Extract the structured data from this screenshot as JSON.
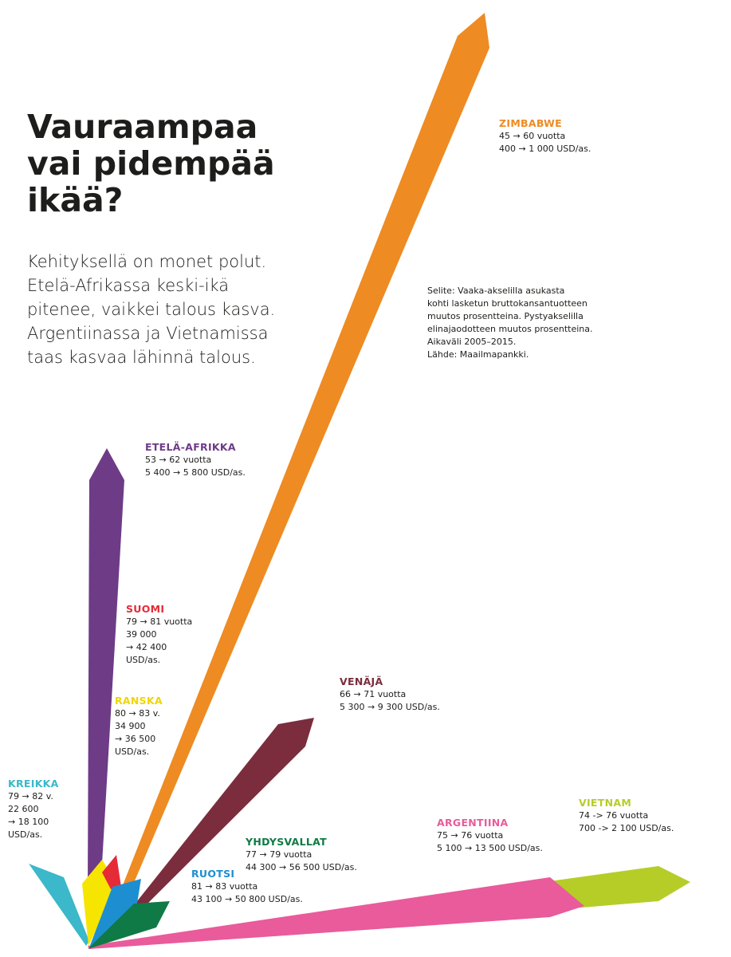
{
  "title": "Vauraampaa\nvai pidempää\nikää?",
  "intro": "Kehityksellä on monet polut.\nEtelä-Afrikassa keski-ikä\npitenee, vaikkei talous kasva.\nArgentiinassa ja Vietnamissa\ntaas kasvaa lähinnä talous.",
  "legend": "Selite: Vaaka-akselilla asukasta\nkohti lasketun bruttokansantuotteen\nmuutos prosentteina. Pystyakselilla\nelinajaodotteen muutos prosentteina.\nAikaväli 2005–2015.\nLähde: Maailmapankki.",
  "chart_data": {
    "type": "arrow-fan",
    "xlabel": "",
    "ylabel": "",
    "period": "2005–2015",
    "series": [
      {
        "name": "ZIMBABWE",
        "color": "#ee8b23",
        "lines": [
          "45 → 60 vuotta",
          "400 → 1 000 USD/as."
        ],
        "life_expectancy": [
          45,
          60
        ],
        "gdp_per_capita": [
          400,
          1000
        ]
      },
      {
        "name": "ETELÄ-AFRIKKA",
        "color": "#6e3b87",
        "lines": [
          "53 → 62 vuotta",
          "5 400 → 5 800 USD/as."
        ],
        "life_expectancy": [
          53,
          62
        ],
        "gdp_per_capita": [
          5400,
          5800
        ]
      },
      {
        "name": "SUOMI",
        "color": "#e52b38",
        "lines": [
          "79 → 81 vuotta",
          "39 000",
          "→ 42 400",
          "USD/as."
        ],
        "life_expectancy": [
          79,
          81
        ],
        "gdp_per_capita": [
          39000,
          42400
        ]
      },
      {
        "name": "RANSKA",
        "color": "#f6e500",
        "lines": [
          "80 → 83 v.",
          "34 900",
          "→ 36 500",
          "USD/as."
        ],
        "life_expectancy": [
          80,
          83
        ],
        "gdp_per_capita": [
          34900,
          36500
        ]
      },
      {
        "name": "KREIKKA",
        "color": "#3bb8c9",
        "lines": [
          "79 → 82 v.",
          "22 600",
          "→ 18 100",
          "USD/as."
        ],
        "life_expectancy": [
          79,
          82
        ],
        "gdp_per_capita": [
          22600,
          18100
        ]
      },
      {
        "name": "VENÄJÄ",
        "color": "#7b2d3d",
        "lines": [
          "66 → 71 vuotta",
          "5 300 → 9 300 USD/as."
        ],
        "life_expectancy": [
          66,
          71
        ],
        "gdp_per_capita": [
          5300,
          9300
        ]
      },
      {
        "name": "YHDYSVALLAT",
        "color": "#0f7a45",
        "lines": [
          "77 → 79 vuotta",
          "44 300 → 56 500 USD/as."
        ],
        "life_expectancy": [
          77,
          79
        ],
        "gdp_per_capita": [
          44300,
          56500
        ]
      },
      {
        "name": "RUOTSI",
        "color": "#1d8fd1",
        "lines": [
          "81 → 83 vuotta",
          "43 100 → 50 800 USD/as."
        ],
        "life_expectancy": [
          81,
          83
        ],
        "gdp_per_capita": [
          43100,
          50800
        ]
      },
      {
        "name": "ARGENTIINA",
        "color": "#e95b9b",
        "lines": [
          "75 → 76 vuotta",
          "5 100 → 13 500 USD/as."
        ],
        "life_expectancy": [
          75,
          76
        ],
        "gdp_per_capita": [
          5100,
          13500
        ]
      },
      {
        "name": "VIETNAM",
        "color": "#b6cd27",
        "lines": [
          "74 -> 76 vuotta",
          "700 -> 2 100 USD/as."
        ],
        "life_expectancy": [
          74,
          76
        ],
        "gdp_per_capita": [
          700,
          2100
        ]
      }
    ]
  }
}
